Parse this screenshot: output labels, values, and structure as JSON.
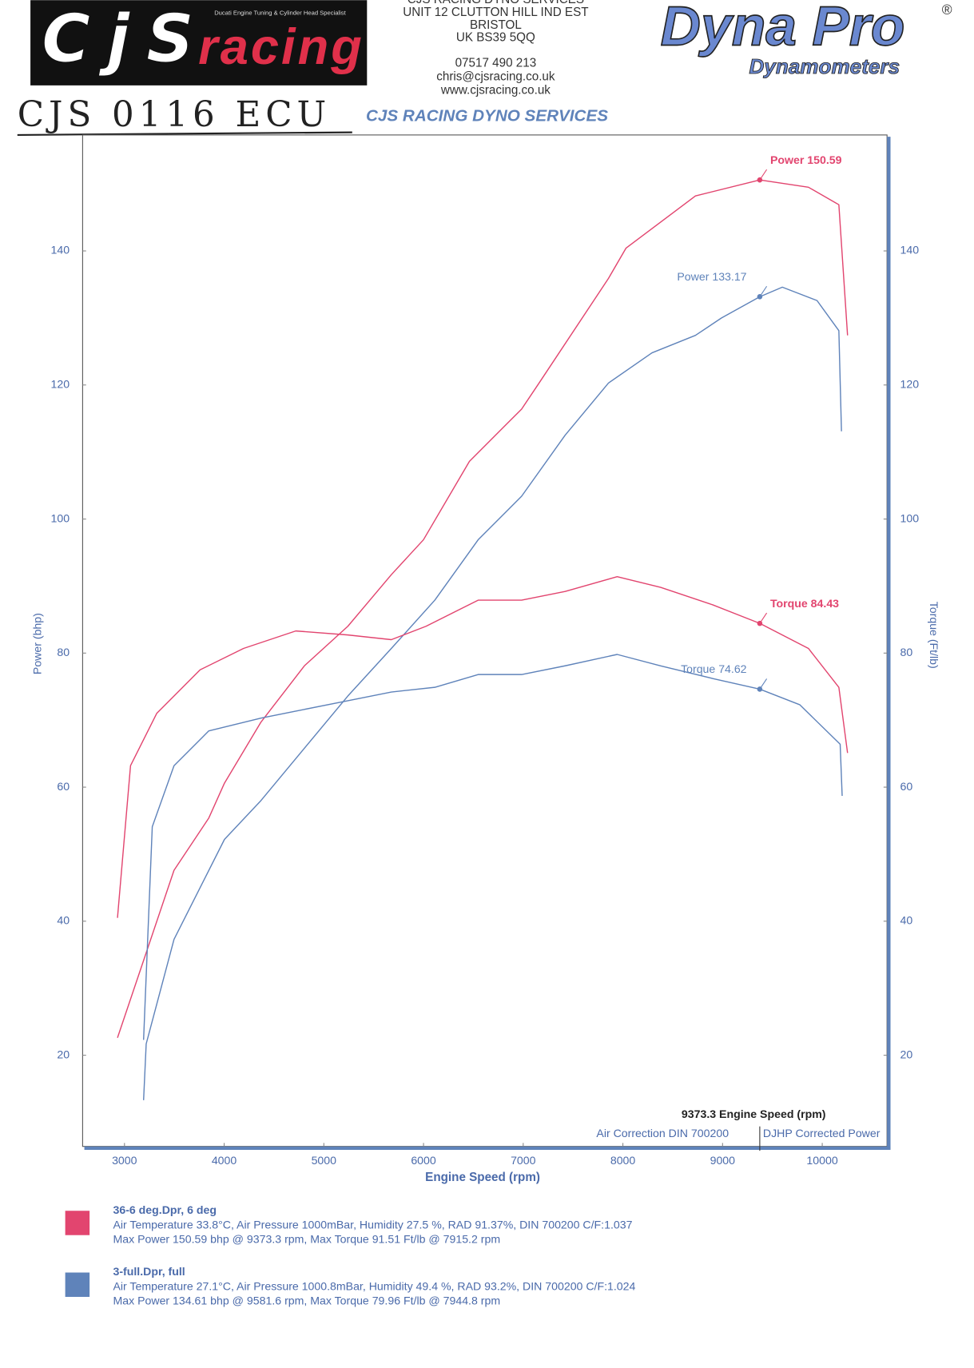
{
  "header": {
    "logo_main": "CjS",
    "logo_sub": "racing",
    "logo_tagline": "Ducati Engine Tuning & Cylinder Head Specialist",
    "address": [
      "CJS RACING DYNO SERVICES",
      "UNIT 12 CLUTTON HILL IND EST",
      "BRISTOL",
      "UK BS39 5QQ"
    ],
    "contact": [
      "07517 490 213",
      "chris@cjsracing.co.uk",
      "www.cjsracing.co.uk"
    ],
    "brand": "Dyna Pro",
    "brand_mark": "®",
    "brand_sub": "Dynamometers",
    "note": "CJS 0116 ECU"
  },
  "chart_data": {
    "type": "line",
    "title": "CJS RACING DYNO SERVICES",
    "xlabel": "Engine Speed (rpm)",
    "ylabel": "Power (bhp)",
    "y2label": "Torque (Ft/lb)",
    "xlim": [
      2580,
      10650
    ],
    "xticks": [
      3000,
      4000,
      5000,
      6000,
      7000,
      8000,
      9000,
      10000
    ],
    "ylim": [
      6.4,
      157.3
    ],
    "yticks": [
      20,
      40,
      60,
      80,
      100,
      120,
      140
    ],
    "y2lim": [
      6.4,
      157.3
    ],
    "y2ticks": [
      20,
      40,
      60,
      80,
      100,
      120,
      140
    ],
    "grid": false,
    "series": [
      {
        "color": "#e2456f",
        "axis": "y",
        "x": [
          2930,
          3497,
          3846,
          4003,
          4369,
          4805,
          5241,
          5677,
          5999,
          6461,
          6984,
          7159,
          7856,
          8031,
          8728,
          9373.3,
          9861,
          10167,
          10254
        ],
        "values": [
          22.6,
          47.6,
          55.4,
          60.6,
          69.7,
          78.1,
          84.0,
          91.7,
          96.9,
          108.6,
          116.4,
          120.3,
          135.9,
          140.4,
          148.2,
          150.59,
          149.5,
          146.9,
          127.4
        ]
      },
      {
        "color": "#5f83ba",
        "axis": "y",
        "x": [
          3192,
          3218,
          3497,
          4003,
          4369,
          4805,
          5241,
          5677,
          6113,
          6548,
          6984,
          7420,
          7856,
          8292,
          8728,
          8990,
          9373.3,
          9600,
          9948,
          10167,
          10193
        ],
        "values": [
          13.3,
          21.7,
          37.3,
          52.2,
          58.0,
          65.8,
          73.6,
          80.7,
          87.9,
          96.9,
          103.4,
          112.5,
          120.3,
          124.8,
          127.4,
          130.0,
          133.17,
          134.6,
          132.6,
          128.1,
          113.1
        ]
      },
      {
        "color": "#e2456f",
        "axis": "y2",
        "x": [
          2930,
          3061,
          3323,
          3759,
          4194,
          4718,
          5241,
          5677,
          6025,
          6548,
          6984,
          7420,
          7943,
          8379,
          8902,
          9373.3,
          9861,
          10167,
          10254
        ],
        "values": [
          40.5,
          63.2,
          71.0,
          77.5,
          80.7,
          83.3,
          82.7,
          82.0,
          84.0,
          87.9,
          87.9,
          89.2,
          91.4,
          89.8,
          87.2,
          84.43,
          80.7,
          74.9,
          65.1
        ]
      },
      {
        "color": "#5f83ba",
        "axis": "y2",
        "x": [
          3192,
          3279,
          3497,
          3846,
          4369,
          4805,
          5241,
          5677,
          6113,
          6548,
          6984,
          7420,
          7943,
          8379,
          8902,
          9373.3,
          9774,
          10180,
          10200
        ],
        "values": [
          22.3,
          54.1,
          63.2,
          68.4,
          70.3,
          71.6,
          72.9,
          74.2,
          74.9,
          76.8,
          76.8,
          78.1,
          79.8,
          78.1,
          76.2,
          74.62,
          72.3,
          66.4,
          58.7
        ]
      }
    ],
    "annotations": [
      {
        "text": "Power 150.59",
        "x": 9373.3,
        "y": 150.59,
        "axis": "y",
        "color": "#e2456f"
      },
      {
        "text": "Power 133.17",
        "x": 9373.3,
        "y": 133.17,
        "axis": "y",
        "color": "#5f83ba"
      },
      {
        "text": "Torque 84.43",
        "x": 9373.3,
        "y": 84.43,
        "axis": "y2",
        "color": "#e2456f"
      },
      {
        "text": "Torque 74.62",
        "x": 9373.3,
        "y": 74.62,
        "axis": "y2",
        "color": "#5f83ba"
      }
    ],
    "cursor": {
      "x": 9373.3,
      "label": "9373.3 Engine Speed (rpm)"
    },
    "footer_notes": [
      "Air Correction DIN 700200",
      "DJHP Corrected Power"
    ],
    "legend": [
      {
        "name": "36-6 deg.Dpr,   6 deg",
        "color": "#e2456f",
        "details": [
          "Air Temperature 33.8°C, Air Pressure 1000mBar, Humidity 27.5 %, RAD 91.37%,   DIN 700200  C/F:1.037",
          "Max Power 150.59 bhp @ 9373.3 rpm, Max Torque 91.51 Ft/lb @ 7915.2 rpm"
        ]
      },
      {
        "name": "3-full.Dpr,   full",
        "color": "#5f83ba",
        "details": [
          "Air Temperature 27.1°C, Air Pressure 1000.8mBar, Humidity 49.4 %, RAD 93.2%,   DIN 700200  C/F:1.024",
          "Max Power 134.61 bhp @ 9581.6 rpm, Max Torque 79.96 Ft/lb @ 7944.8 rpm"
        ]
      }
    ]
  }
}
